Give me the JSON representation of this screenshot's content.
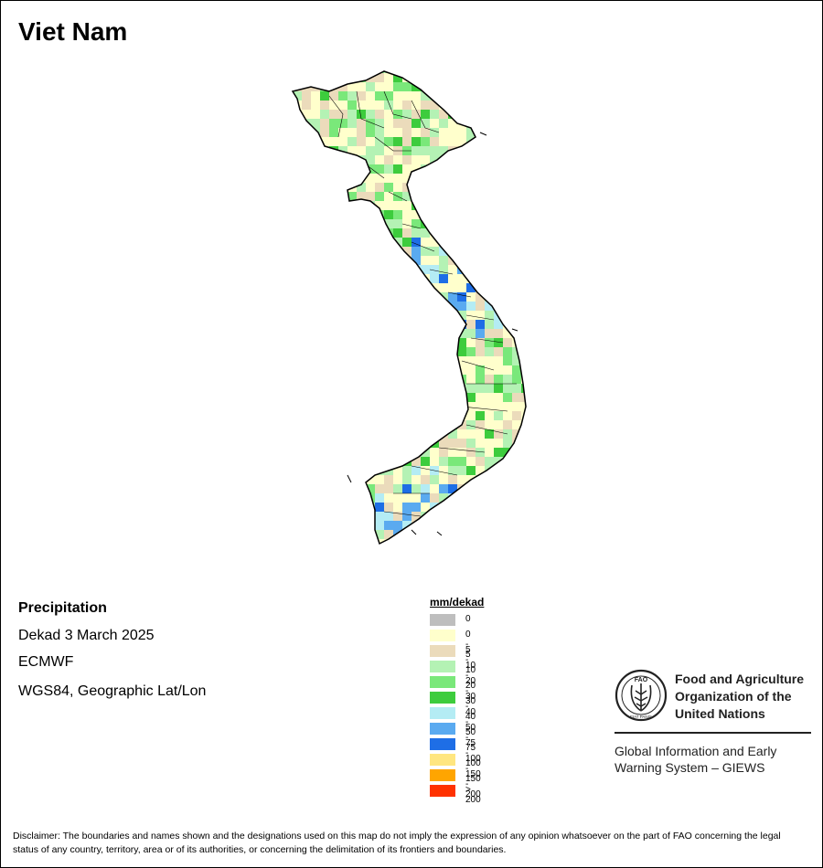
{
  "title": "Viet Nam",
  "info": {
    "variable": "Precipitation",
    "period": "Dekad 3 March 2025",
    "source": "ECMWF",
    "projection": "WGS84, Geographic Lat/Lon"
  },
  "legend": {
    "title": "mm/dekad",
    "classes": [
      {
        "label": "0",
        "color": "#bebebe"
      },
      {
        "label": "0 - 5",
        "color": "#ffffcc"
      },
      {
        "label": "5 - 10",
        "color": "#ebdbbb"
      },
      {
        "label": "10 - 20",
        "color": "#b4f2b4"
      },
      {
        "label": "20 - 30",
        "color": "#7ae87a"
      },
      {
        "label": "30 - 40",
        "color": "#3dcc3d"
      },
      {
        "label": "40 - 50",
        "color": "#b4ecf4"
      },
      {
        "label": "50 - 75",
        "color": "#5aaaf0"
      },
      {
        "label": "75 - 100",
        "color": "#1e6ee6"
      },
      {
        "label": "100 - 150",
        "color": "#ffe680"
      },
      {
        "label": "150 - 200",
        "color": "#ffa500"
      },
      {
        "label": "> 200",
        "color": "#ff3200"
      }
    ]
  },
  "organization": {
    "name": "Food and Agriculture Organization of the United Nations",
    "logo_text": "FAO",
    "logo_motto": "FIAT PANIS",
    "program": "Global Information and Early Warning System – GIEWS"
  },
  "disclaimer": "Disclaimer: The boundaries and names shown and the designations used on this map do not imply the expression of any opinion whatsoever on the part of FAO concerning the legal status of any country, territory, area or of its authorities, or concerning the delimitation of its frontiers and boundaries."
}
